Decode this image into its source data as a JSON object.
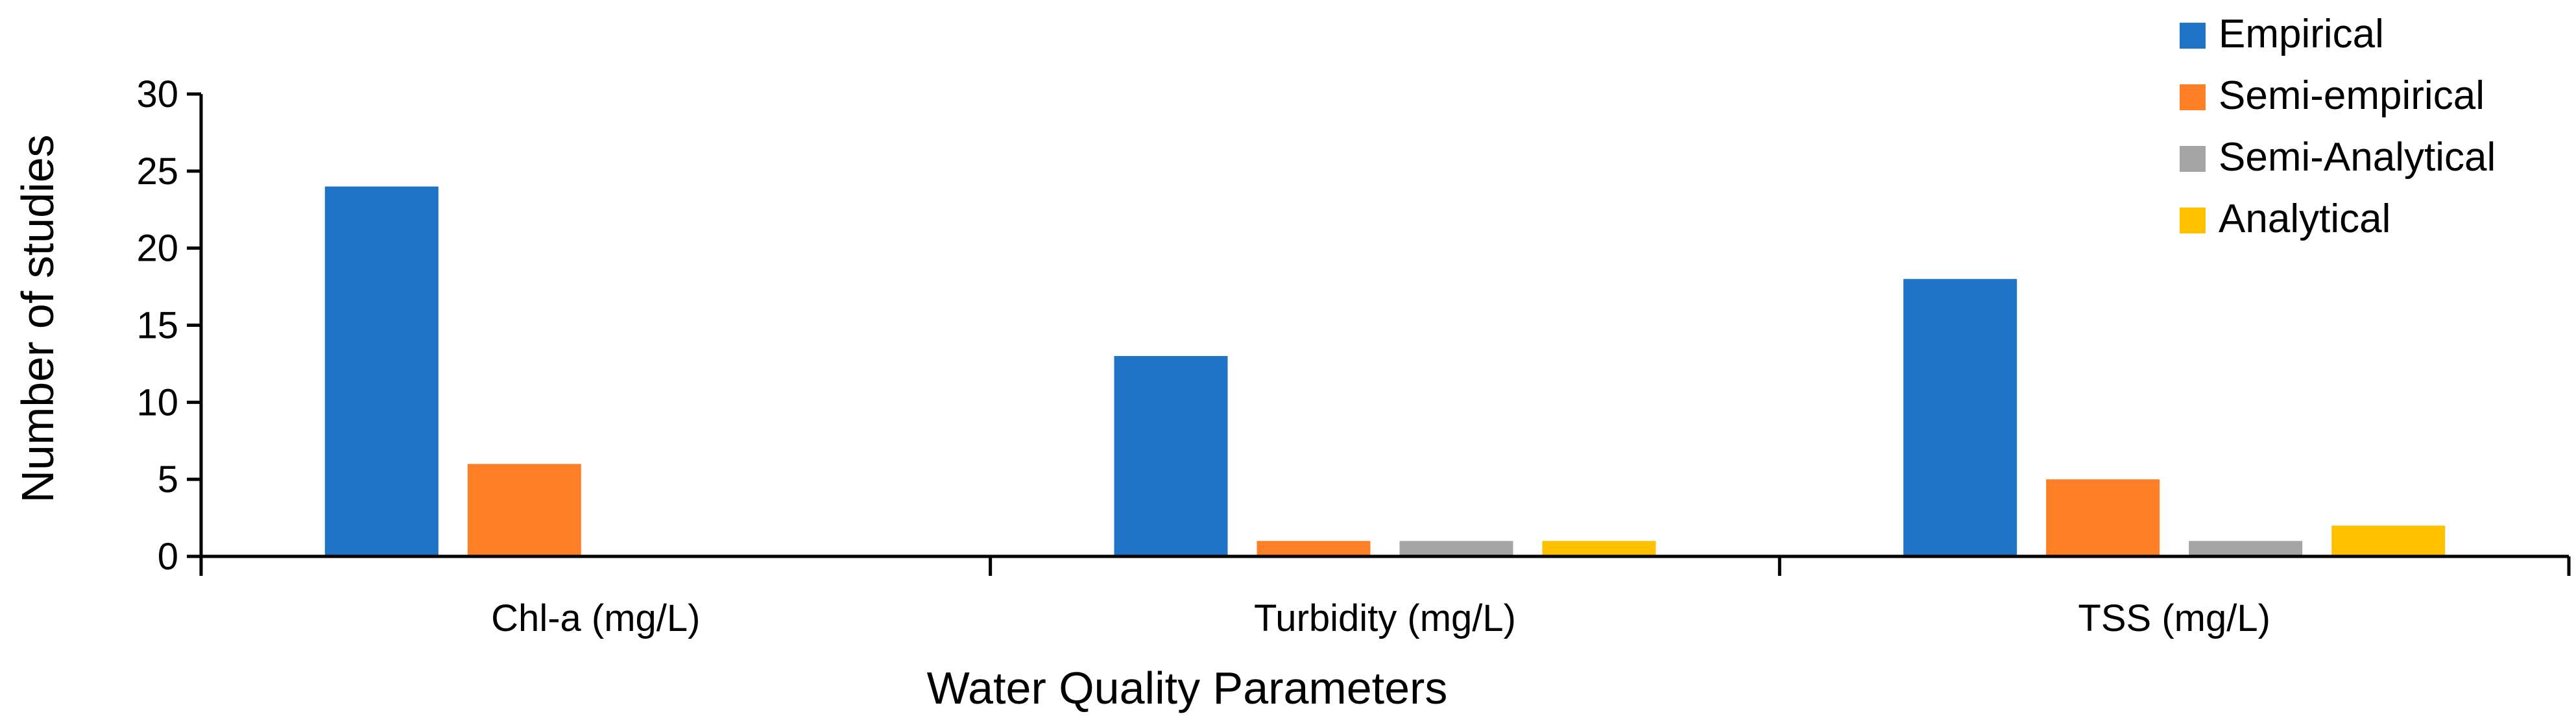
{
  "chart_data": {
    "type": "bar",
    "title": "",
    "xlabel": "Water Quality Parameters",
    "ylabel": "Number of studies",
    "categories": [
      "Chl-a (mg/L)",
      "Turbidity (mg/L)",
      "TSS (mg/L)"
    ],
    "series": [
      {
        "name": "Empirical",
        "values": [
          24,
          13,
          18
        ],
        "color": "#1F74C8"
      },
      {
        "name": "Semi-empirical",
        "values": [
          6,
          1,
          5
        ],
        "color": "#FF7F27"
      },
      {
        "name": "Semi-Analytical",
        "values": [
          0,
          1,
          1
        ],
        "color": "#A5A5A5"
      },
      {
        "name": "Analytical",
        "values": [
          0,
          1,
          2
        ],
        "color": "#FFC000"
      }
    ],
    "ylim": [
      0,
      30
    ],
    "yticks": [
      "0",
      "5",
      "10",
      "15",
      "20",
      "25",
      "30"
    ],
    "grid": false,
    "legend": "top-right"
  }
}
